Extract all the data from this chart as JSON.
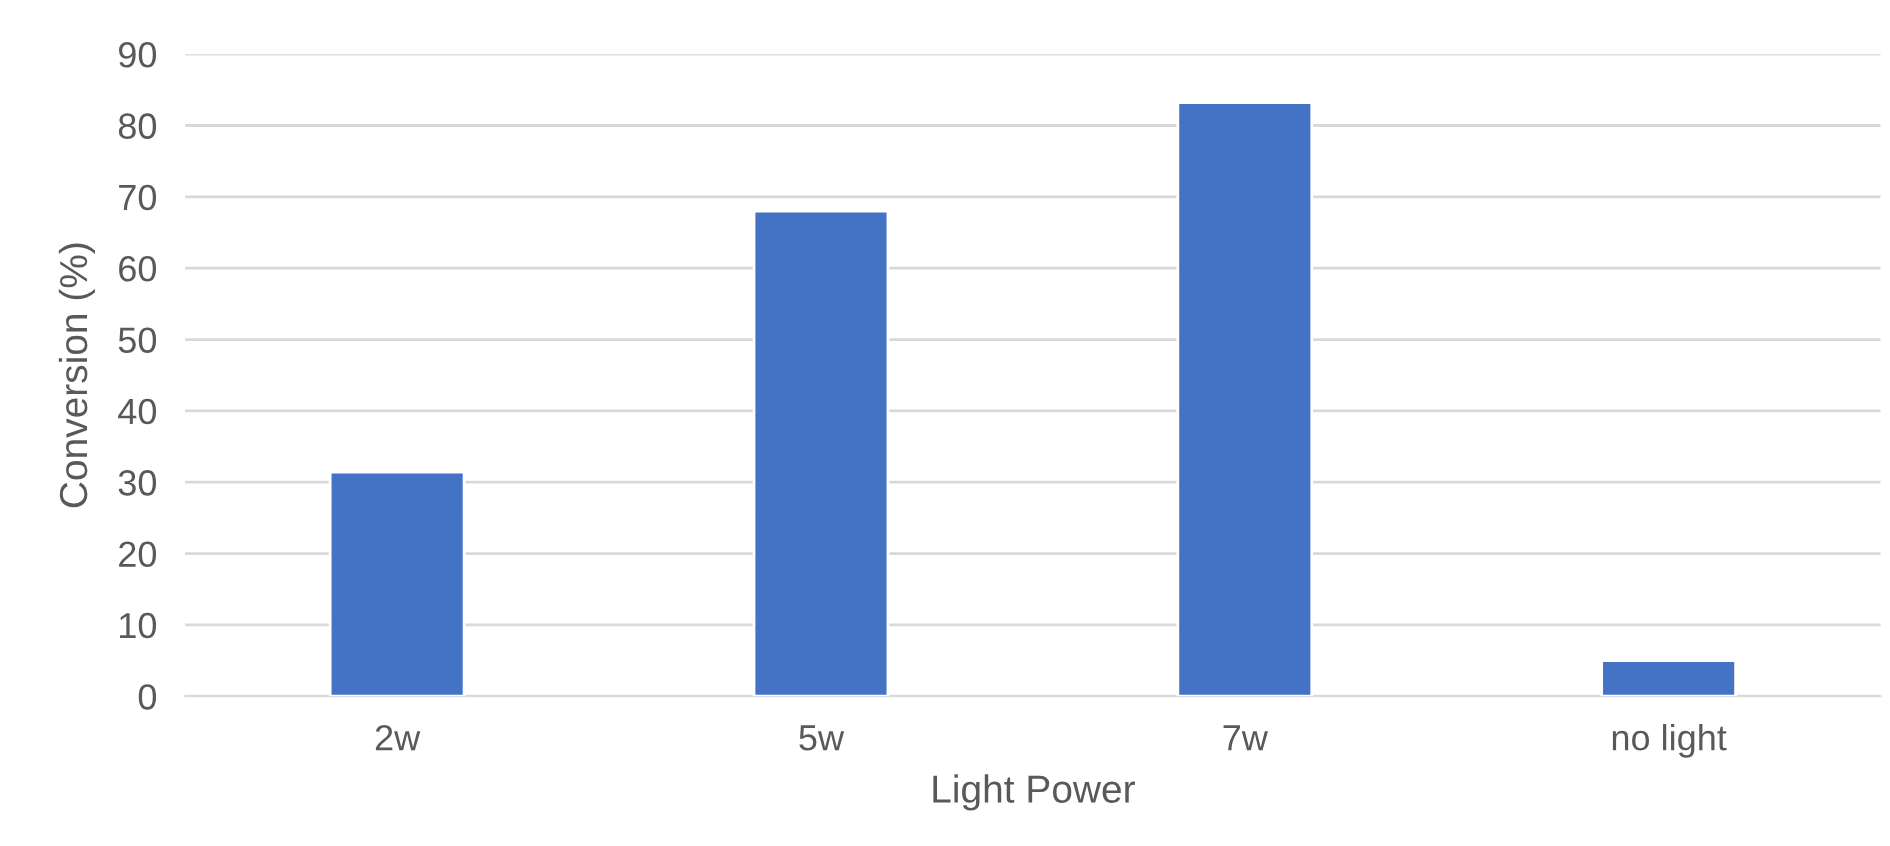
{
  "chart_data": {
    "type": "bar",
    "xlabel": "Light Power",
    "ylabel": "Conversion (%)",
    "categories": [
      "2w",
      "5w",
      "7w",
      "no light"
    ],
    "values": [
      31.4,
      68,
      83.2,
      5
    ],
    "color": "#4472c4",
    "ylim": [
      0,
      90
    ],
    "yticks": [
      0,
      10,
      20,
      30,
      40,
      50,
      60,
      70,
      80,
      90
    ],
    "grid": "y"
  }
}
